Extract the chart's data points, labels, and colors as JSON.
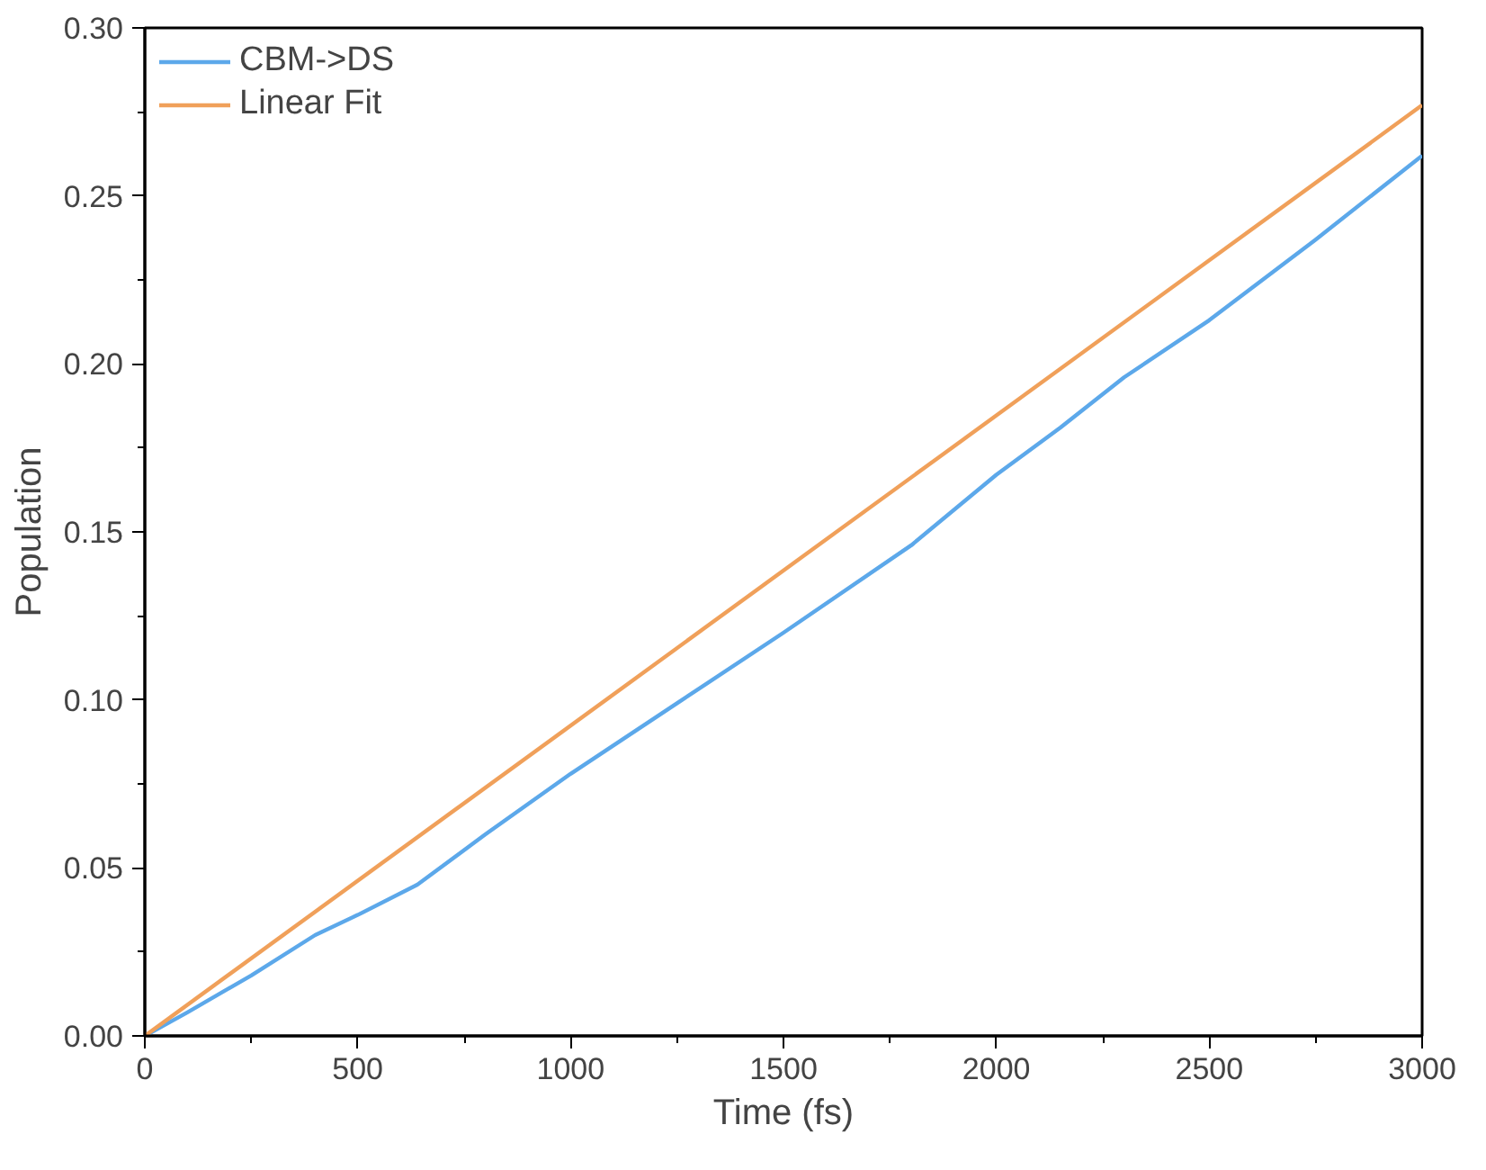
{
  "chart_data": {
    "type": "line",
    "xlabel": "Time (fs)",
    "ylabel": "Population",
    "xlim": [
      0,
      3000
    ],
    "ylim": [
      0,
      0.3
    ],
    "xticks": [
      0,
      500,
      1000,
      1500,
      2000,
      2500,
      3000
    ],
    "yticks": [
      {
        "value": 0,
        "label": "0.00"
      },
      {
        "value": 0.05,
        "label": "0.05"
      },
      {
        "value": 0.1,
        "label": "0.10"
      },
      {
        "value": 0.15,
        "label": "0.15"
      },
      {
        "value": 0.2,
        "label": "0.20"
      },
      {
        "value": 0.25,
        "label": "0.25"
      },
      {
        "value": 0.3,
        "label": "0.30"
      }
    ],
    "series": [
      {
        "name": "CBM->DS",
        "color": "#5ca8ea",
        "x": [
          0,
          100,
          250,
          400,
          500,
          640,
          800,
          1000,
          1250,
          1500,
          1800,
          2000,
          2150,
          2300,
          2500,
          2750,
          3000
        ],
        "values": [
          0,
          0.007,
          0.018,
          0.03,
          0.036,
          0.045,
          0.06,
          0.078,
          0.099,
          0.12,
          0.146,
          0.167,
          0.181,
          0.196,
          0.213,
          0.237,
          0.262
        ]
      },
      {
        "name": "Linear Fit",
        "color": "#f0a05a",
        "x": [
          0,
          3000
        ],
        "values": [
          0,
          0.277
        ]
      }
    ],
    "legend": "top left",
    "grid": false,
    "marker": "none",
    "line_style": "solid"
  }
}
